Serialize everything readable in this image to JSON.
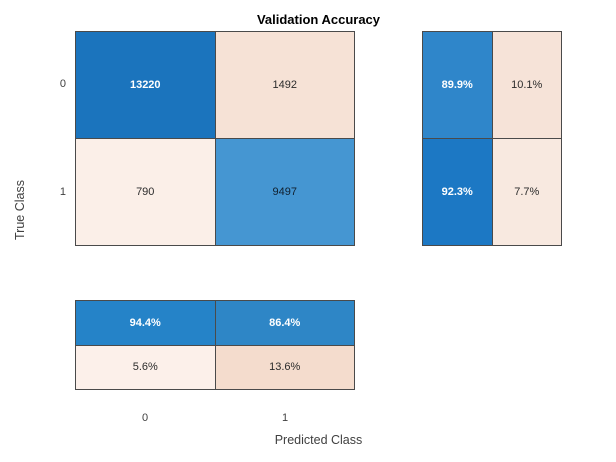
{
  "title": "Validation Accuracy",
  "axes": {
    "x_label": "Predicted Class",
    "y_label": "True Class",
    "x_ticks": [
      "0",
      "1"
    ],
    "y_ticks": [
      "0",
      "1"
    ]
  },
  "colors": {
    "grid_line": "#4a4a4a",
    "blue_dark": "#1b74bd",
    "blue_medium": "#4596d2",
    "peach_light": "#fbefe8",
    "peach_medium": "#f4dfd2"
  },
  "chart_data": {
    "type": "heatmap",
    "subtype": "confusion-matrix",
    "title": "Validation Accuracy",
    "xlabel": "Predicted Class",
    "ylabel": "True Class",
    "classes": [
      "0",
      "1"
    ],
    "matrix": [
      [
        13220,
        1492
      ],
      [
        790,
        9497
      ]
    ],
    "row_summary_percent": [
      [
        "89.9%",
        "10.1%"
      ],
      [
        "92.3%",
        "7.7%"
      ]
    ],
    "column_summary_percent": [
      [
        "94.4%",
        "86.4%"
      ],
      [
        "5.6%",
        "13.6%"
      ]
    ],
    "legend_position": "none",
    "grid": true
  },
  "grid": {
    "main": [
      {
        "label": "13220",
        "bg": "#1b74bd",
        "fg": "#ffffff"
      },
      {
        "label": "1492",
        "bg": "#f6e2d6",
        "fg": "#2b2b2b"
      },
      {
        "label": "790",
        "bg": "#fbefe8",
        "fg": "#2b2b2b"
      },
      {
        "label": "9497",
        "bg": "#4596d2",
        "fg": "#101f2d"
      }
    ],
    "row_summary": [
      {
        "label": "89.9%",
        "bg": "#2f86ca",
        "fg": "#ffffff"
      },
      {
        "label": "10.1%",
        "bg": "#f6e3d8",
        "fg": "#2b2b2b"
      },
      {
        "label": "92.3%",
        "bg": "#1c78c4",
        "fg": "#ffffff"
      },
      {
        "label": "7.7%",
        "bg": "#f8e9e0",
        "fg": "#2b2b2b"
      }
    ],
    "col_summary": [
      {
        "label": "94.4%",
        "bg": "#2583c8",
        "fg": "#ffffff"
      },
      {
        "label": "86.4%",
        "bg": "#2e86c6",
        "fg": "#ffffff"
      },
      {
        "label": "5.6%",
        "bg": "#fcf0ea",
        "fg": "#2b2b2b"
      },
      {
        "label": "13.6%",
        "bg": "#f4dccd",
        "fg": "#2b2b2b"
      }
    ]
  }
}
